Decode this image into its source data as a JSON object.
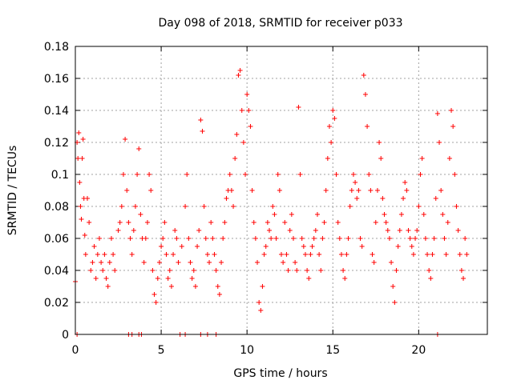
{
  "chart_data": {
    "type": "scatter",
    "title": "Day 098 of 2018, SRMTID for receiver p033",
    "xlabel": "GPS time / hours",
    "ylabel": "SRMTID / TECUs",
    "xlim": [
      0,
      24
    ],
    "ylim": [
      0,
      0.18
    ],
    "xticks": [
      0,
      5,
      10,
      15,
      20
    ],
    "xtick_labels": [
      "0",
      "5",
      "10",
      "15",
      "20"
    ],
    "yticks": [
      0,
      0.02,
      0.04,
      0.06,
      0.08,
      0.1,
      0.12,
      0.14,
      0.16,
      0.18
    ],
    "ytick_labels": [
      "0",
      "0.02",
      "0.04",
      "0.06",
      "0.08",
      "0.1",
      "0.12",
      "0.14",
      "0.16",
      "0.18"
    ],
    "grid": true,
    "marker": "+",
    "color": "#ff0000",
    "series": [
      {
        "name": "SRMTID",
        "points": [
          [
            0.0,
            0.033
          ],
          [
            0.1,
            0.12
          ],
          [
            0.15,
            0.11
          ],
          [
            0.2,
            0.126
          ],
          [
            0.25,
            0.095
          ],
          [
            0.3,
            0.08
          ],
          [
            0.35,
            0.072
          ],
          [
            0.4,
            0.11
          ],
          [
            0.45,
            0.122
          ],
          [
            0.5,
            0.085
          ],
          [
            0.55,
            0.062
          ],
          [
            0.6,
            0.05
          ],
          [
            0.7,
            0.085
          ],
          [
            0.8,
            0.07
          ],
          [
            0.9,
            0.04
          ],
          [
            1.0,
            0.045
          ],
          [
            1.1,
            0.055
          ],
          [
            1.2,
            0.035
          ],
          [
            1.3,
            0.05
          ],
          [
            1.4,
            0.06
          ],
          [
            1.5,
            0.045
          ],
          [
            1.6,
            0.04
          ],
          [
            1.7,
            0.05
          ],
          [
            1.8,
            0.035
          ],
          [
            1.9,
            0.03
          ],
          [
            2.0,
            0.045
          ],
          [
            2.1,
            0.06
          ],
          [
            2.2,
            0.05
          ],
          [
            2.3,
            0.04
          ],
          [
            2.5,
            0.065
          ],
          [
            2.6,
            0.07
          ],
          [
            2.7,
            0.08
          ],
          [
            2.8,
            0.1
          ],
          [
            2.9,
            0.122
          ],
          [
            3.0,
            0.09
          ],
          [
            3.1,
            0.07
          ],
          [
            3.2,
            0.06
          ],
          [
            3.3,
            0.05
          ],
          [
            3.4,
            0.065
          ],
          [
            3.5,
            0.08
          ],
          [
            3.6,
            0.1
          ],
          [
            3.7,
            0.116
          ],
          [
            3.8,
            0.075
          ],
          [
            3.9,
            0.06
          ],
          [
            4.0,
            0.045
          ],
          [
            4.1,
            0.06
          ],
          [
            4.2,
            0.07
          ],
          [
            4.3,
            0.1
          ],
          [
            4.4,
            0.09
          ],
          [
            4.5,
            0.04
          ],
          [
            4.6,
            0.025
          ],
          [
            4.7,
            0.02
          ],
          [
            4.8,
            0.035
          ],
          [
            4.9,
            0.045
          ],
          [
            5.0,
            0.055
          ],
          [
            5.1,
            0.06
          ],
          [
            5.2,
            0.07
          ],
          [
            5.3,
            0.05
          ],
          [
            5.4,
            0.035
          ],
          [
            5.5,
            0.04
          ],
          [
            5.6,
            0.03
          ],
          [
            5.7,
            0.05
          ],
          [
            5.8,
            0.065
          ],
          [
            5.9,
            0.06
          ],
          [
            6.0,
            0.045
          ],
          [
            6.2,
            0.055
          ],
          [
            6.4,
            0.08
          ],
          [
            6.5,
            0.1
          ],
          [
            6.6,
            0.06
          ],
          [
            6.7,
            0.045
          ],
          [
            6.8,
            0.035
          ],
          [
            6.9,
            0.04
          ],
          [
            7.0,
            0.03
          ],
          [
            7.1,
            0.055
          ],
          [
            7.2,
            0.065
          ],
          [
            7.3,
            0.134
          ],
          [
            7.4,
            0.127
          ],
          [
            7.5,
            0.08
          ],
          [
            7.6,
            0.06
          ],
          [
            7.7,
            0.05
          ],
          [
            7.8,
            0.045
          ],
          [
            7.9,
            0.07
          ],
          [
            8.0,
            0.06
          ],
          [
            8.1,
            0.05
          ],
          [
            8.2,
            0.04
          ],
          [
            8.3,
            0.03
          ],
          [
            8.4,
            0.025
          ],
          [
            8.5,
            0.045
          ],
          [
            8.6,
            0.06
          ],
          [
            8.7,
            0.07
          ],
          [
            8.8,
            0.085
          ],
          [
            8.9,
            0.09
          ],
          [
            9.0,
            0.1
          ],
          [
            9.1,
            0.09
          ],
          [
            9.2,
            0.08
          ],
          [
            9.3,
            0.11
          ],
          [
            9.4,
            0.125
          ],
          [
            9.5,
            0.162
          ],
          [
            9.6,
            0.165
          ],
          [
            9.7,
            0.14
          ],
          [
            9.8,
            0.12
          ],
          [
            9.9,
            0.1
          ],
          [
            10.0,
            0.15
          ],
          [
            10.1,
            0.14
          ],
          [
            10.2,
            0.13
          ],
          [
            10.3,
            0.09
          ],
          [
            10.4,
            0.07
          ],
          [
            10.5,
            0.06
          ],
          [
            10.6,
            0.045
          ],
          [
            10.7,
            0.02
          ],
          [
            10.8,
            0.015
          ],
          [
            10.9,
            0.03
          ],
          [
            11.0,
            0.05
          ],
          [
            11.1,
            0.055
          ],
          [
            11.2,
            0.07
          ],
          [
            11.3,
            0.065
          ],
          [
            11.4,
            0.06
          ],
          [
            11.5,
            0.08
          ],
          [
            11.6,
            0.075
          ],
          [
            11.7,
            0.06
          ],
          [
            11.8,
            0.1
          ],
          [
            11.9,
            0.09
          ],
          [
            12.0,
            0.05
          ],
          [
            12.1,
            0.045
          ],
          [
            12.2,
            0.07
          ],
          [
            12.3,
            0.05
          ],
          [
            12.4,
            0.04
          ],
          [
            12.5,
            0.065
          ],
          [
            12.6,
            0.075
          ],
          [
            12.7,
            0.06
          ],
          [
            12.8,
            0.045
          ],
          [
            12.9,
            0.04
          ],
          [
            13.0,
            0.142
          ],
          [
            13.1,
            0.1
          ],
          [
            13.2,
            0.06
          ],
          [
            13.3,
            0.055
          ],
          [
            13.4,
            0.05
          ],
          [
            13.5,
            0.04
          ],
          [
            13.6,
            0.035
          ],
          [
            13.7,
            0.05
          ],
          [
            13.8,
            0.055
          ],
          [
            13.9,
            0.06
          ],
          [
            14.0,
            0.065
          ],
          [
            14.1,
            0.075
          ],
          [
            14.2,
            0.05
          ],
          [
            14.3,
            0.04
          ],
          [
            14.4,
            0.06
          ],
          [
            14.5,
            0.07
          ],
          [
            14.6,
            0.09
          ],
          [
            14.7,
            0.11
          ],
          [
            14.8,
            0.13
          ],
          [
            14.9,
            0.12
          ],
          [
            15.0,
            0.14
          ],
          [
            15.1,
            0.135
          ],
          [
            15.2,
            0.1
          ],
          [
            15.3,
            0.07
          ],
          [
            15.4,
            0.06
          ],
          [
            15.5,
            0.05
          ],
          [
            15.6,
            0.04
          ],
          [
            15.7,
            0.035
          ],
          [
            15.8,
            0.05
          ],
          [
            15.9,
            0.06
          ],
          [
            16.0,
            0.08
          ],
          [
            16.1,
            0.09
          ],
          [
            16.2,
            0.1
          ],
          [
            16.3,
            0.095
          ],
          [
            16.4,
            0.085
          ],
          [
            16.5,
            0.09
          ],
          [
            16.6,
            0.06
          ],
          [
            16.7,
            0.055
          ],
          [
            16.8,
            0.162
          ],
          [
            16.9,
            0.15
          ],
          [
            17.0,
            0.13
          ],
          [
            17.1,
            0.1
          ],
          [
            17.2,
            0.09
          ],
          [
            17.3,
            0.05
          ],
          [
            17.4,
            0.045
          ],
          [
            17.5,
            0.07
          ],
          [
            17.6,
            0.09
          ],
          [
            17.7,
            0.12
          ],
          [
            17.8,
            0.11
          ],
          [
            17.9,
            0.085
          ],
          [
            18.0,
            0.075
          ],
          [
            18.1,
            0.07
          ],
          [
            18.2,
            0.065
          ],
          [
            18.3,
            0.06
          ],
          [
            18.4,
            0.045
          ],
          [
            18.5,
            0.03
          ],
          [
            18.6,
            0.02
          ],
          [
            18.7,
            0.04
          ],
          [
            18.8,
            0.055
          ],
          [
            18.9,
            0.065
          ],
          [
            19.0,
            0.075
          ],
          [
            19.1,
            0.085
          ],
          [
            19.2,
            0.095
          ],
          [
            19.3,
            0.09
          ],
          [
            19.4,
            0.065
          ],
          [
            19.5,
            0.06
          ],
          [
            19.6,
            0.055
          ],
          [
            19.7,
            0.05
          ],
          [
            19.8,
            0.06
          ],
          [
            19.9,
            0.065
          ],
          [
            20.0,
            0.08
          ],
          [
            20.1,
            0.1
          ],
          [
            20.2,
            0.11
          ],
          [
            20.3,
            0.075
          ],
          [
            20.4,
            0.06
          ],
          [
            20.5,
            0.05
          ],
          [
            20.6,
            0.04
          ],
          [
            20.7,
            0.035
          ],
          [
            20.8,
            0.05
          ],
          [
            20.9,
            0.06
          ],
          [
            21.0,
            0.085
          ],
          [
            21.1,
            0.138
          ],
          [
            21.2,
            0.12
          ],
          [
            21.3,
            0.09
          ],
          [
            21.4,
            0.075
          ],
          [
            21.5,
            0.06
          ],
          [
            21.6,
            0.05
          ],
          [
            21.7,
            0.07
          ],
          [
            21.8,
            0.11
          ],
          [
            21.9,
            0.14
          ],
          [
            22.0,
            0.13
          ],
          [
            22.1,
            0.1
          ],
          [
            22.2,
            0.08
          ],
          [
            22.3,
            0.065
          ],
          [
            22.4,
            0.05
          ],
          [
            22.5,
            0.04
          ],
          [
            22.6,
            0.035
          ],
          [
            22.7,
            0.06
          ],
          [
            22.8,
            0.05
          ],
          [
            0.1,
            0.0
          ],
          [
            3.1,
            0.0
          ],
          [
            3.3,
            0.0
          ],
          [
            3.7,
            0.0
          ],
          [
            3.85,
            0.0
          ],
          [
            6.1,
            0.0
          ],
          [
            6.4,
            0.0
          ],
          [
            7.3,
            0.0
          ],
          [
            7.7,
            0.0
          ],
          [
            8.2,
            0.0
          ],
          [
            21.1,
            0.0
          ]
        ]
      }
    ]
  }
}
